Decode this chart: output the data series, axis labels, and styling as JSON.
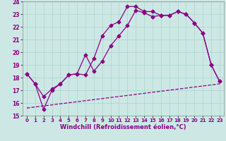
{
  "title": "",
  "xlabel": "Windchill (Refroidissement éolien,°C)",
  "background_color": "#cde8e4",
  "line_color": "#880088",
  "xlim": [
    -0.5,
    23.5
  ],
  "ylim": [
    15,
    24
  ],
  "yticks": [
    15,
    16,
    17,
    18,
    19,
    20,
    21,
    22,
    23,
    24
  ],
  "xticks": [
    0,
    1,
    2,
    3,
    4,
    5,
    6,
    7,
    8,
    9,
    10,
    11,
    12,
    13,
    14,
    15,
    16,
    17,
    18,
    19,
    20,
    21,
    22,
    23
  ],
  "line1_x": [
    0,
    1,
    2,
    3,
    4,
    5,
    6,
    7,
    8,
    9,
    10,
    11,
    12,
    13,
    14,
    15,
    16,
    17,
    18,
    19,
    20,
    21,
    22,
    23
  ],
  "line1_y": [
    18.3,
    17.5,
    16.5,
    17.1,
    17.5,
    18.2,
    18.3,
    18.2,
    19.5,
    21.3,
    22.1,
    22.4,
    23.6,
    23.6,
    23.2,
    23.2,
    22.9,
    22.9,
    23.2,
    23.0,
    22.3,
    21.5,
    19.0,
    17.7
  ],
  "line2_x": [
    0,
    1,
    2,
    3,
    4,
    5,
    6,
    7,
    8,
    9,
    10,
    11,
    12,
    13,
    14,
    15,
    16,
    17,
    18,
    19,
    20,
    21,
    22,
    23
  ],
  "line2_y": [
    18.3,
    17.5,
    15.5,
    17.0,
    17.5,
    18.2,
    18.3,
    19.8,
    18.5,
    19.3,
    20.5,
    21.3,
    22.1,
    23.3,
    23.1,
    22.8,
    22.9,
    22.9,
    23.2,
    23.0,
    22.3,
    21.5,
    19.0,
    17.7
  ],
  "line3_x": [
    0,
    23
  ],
  "line3_y": [
    15.6,
    17.5
  ],
  "grid_color": "#aad4ce",
  "marker": "D",
  "markersize": 2.5,
  "linewidth": 0.9
}
